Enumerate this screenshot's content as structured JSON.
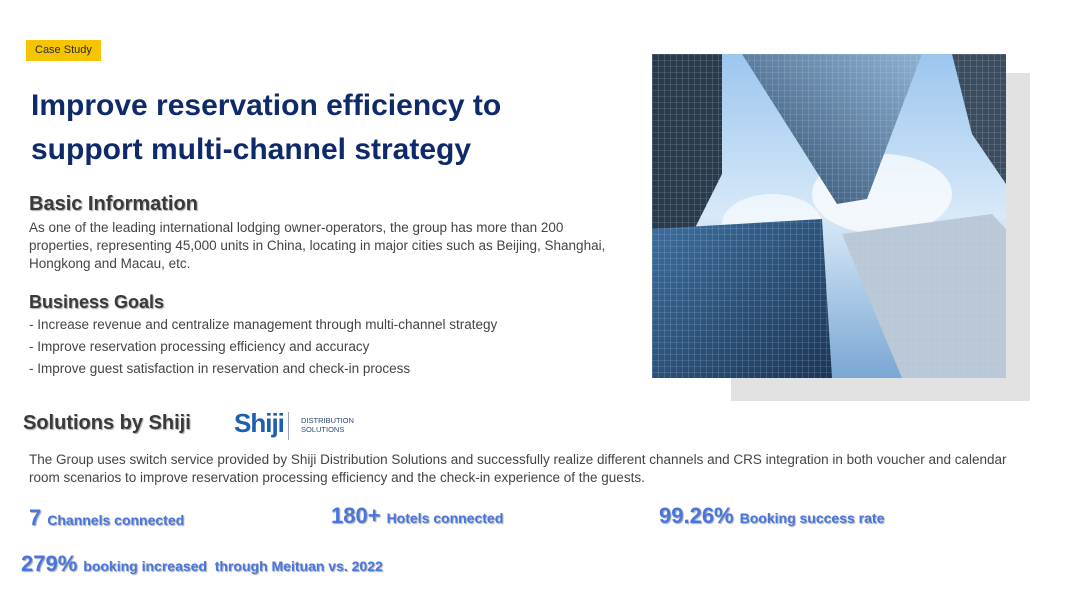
{
  "tag": "Case Study",
  "title_line1": "Improve reservation efficiency to",
  "title_line2": "support multi-channel strategy",
  "basic_info": {
    "heading": "Basic Information",
    "text": "As one of the leading international lodging owner-operators, the group has more than 200 properties, representing 45,000 units in China, locating in major cities such as Beijing, Shanghai, Hongkong and Macau, etc."
  },
  "business_goals": {
    "heading": "Business Goals",
    "items": [
      "- Increase revenue and centralize management through multi-channel strategy",
      "- Improve reservation processing efficiency and accuracy",
      "- Improve guest satisfaction in reservation and check-in process"
    ]
  },
  "solutions": {
    "heading": "Solutions by Shiji",
    "logo_word": "Shiji",
    "logo_sub1": "DISTRIBUTION",
    "logo_sub2": "SOLUTIONS",
    "text": "The Group uses switch service provided by Shiji Distribution Solutions and successfully realize different channels and CRS integration in both voucher and calendar room scenarios to improve reservation processing efficiency and the check-in experience of the guests."
  },
  "stats": [
    {
      "value": "7",
      "label": "Channels connected"
    },
    {
      "value": "180+",
      "label": "Hotels connected"
    },
    {
      "value": "99.26%",
      "label": "Booking success rate"
    },
    {
      "value": "279%",
      "label": "booking increased  through Meituan vs. 2022"
    }
  ],
  "colors": {
    "title": "#0f2a6b",
    "tag_bg": "#f6c400",
    "stat": "#4876e0",
    "logo": "#1c5fb0"
  }
}
